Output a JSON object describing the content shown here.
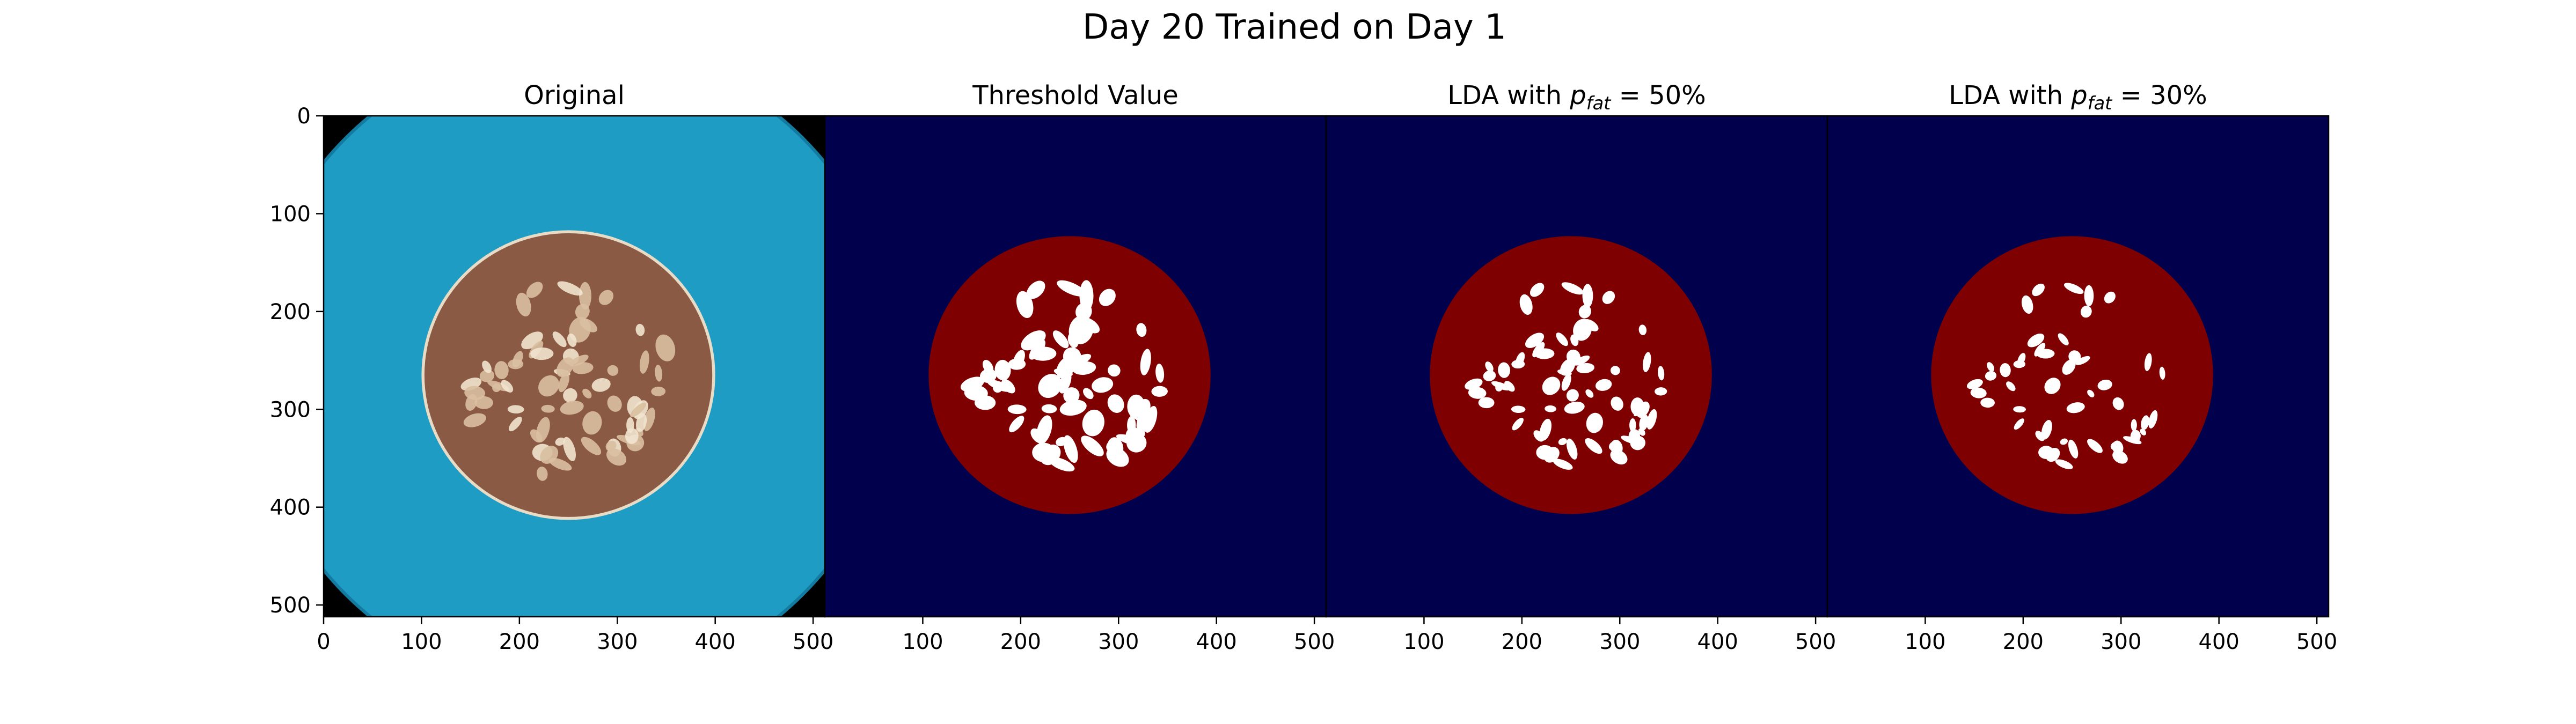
{
  "figure": {
    "title": "Day 20 Trained on Day 1"
  },
  "colors": {
    "background_blue": "#00004c",
    "sausage_red": "#7f0000",
    "fat_white": "#ffffff",
    "tray_blue": "#1f9cc4",
    "tray_edge": "#137aa0",
    "corner_black": "#000000",
    "meat_brown": "#8a5a44"
  },
  "chart_data": [
    {
      "type": "image",
      "title": "Original",
      "xlim": [
        0,
        512
      ],
      "ylim": [
        512,
        0
      ],
      "xticks": [
        0,
        100,
        200,
        300,
        400,
        500
      ],
      "yticks": [
        0,
        100,
        200,
        300,
        400,
        500
      ],
      "xtick_labels": [
        "0",
        "100",
        "200",
        "300",
        "400",
        "500"
      ],
      "ytick_labels": [
        "0",
        "100",
        "200",
        "300",
        "400",
        "500"
      ],
      "show_yaxis": true,
      "content": "photo",
      "sausage": {
        "cx": 250,
        "cy": 265,
        "rx": 147,
        "ry": 145
      }
    },
    {
      "type": "image",
      "title": "Threshold Value",
      "xlim": [
        0,
        512
      ],
      "ylim": [
        512,
        0
      ],
      "xticks": [
        100,
        200,
        300,
        400,
        500
      ],
      "xtick_labels": [
        "100",
        "200",
        "300",
        "400",
        "500"
      ],
      "show_yaxis": false,
      "content": "mask",
      "sausage": {
        "cx": 250,
        "cy": 265,
        "rx": 144,
        "ry": 142
      }
    },
    {
      "type": "image",
      "title": "LDA with p_fat = 50%",
      "title_prefix": "LDA with ",
      "title_var": "p",
      "title_sub": "fat",
      "title_suffix": " = 50%",
      "xlim": [
        0,
        512
      ],
      "ylim": [
        512,
        0
      ],
      "xticks": [
        100,
        200,
        300,
        400,
        500
      ],
      "xtick_labels": [
        "100",
        "200",
        "300",
        "400",
        "500"
      ],
      "show_yaxis": false,
      "content": "mask",
      "sausage": {
        "cx": 250,
        "cy": 265,
        "rx": 144,
        "ry": 142
      }
    },
    {
      "type": "image",
      "title": "LDA with p_fat = 30%",
      "title_prefix": "LDA with ",
      "title_var": "p",
      "title_sub": "fat",
      "title_suffix": " = 30%",
      "xlim": [
        0,
        512
      ],
      "ylim": [
        512,
        0
      ],
      "xticks": [
        100,
        200,
        300,
        400,
        500
      ],
      "xtick_labels": [
        "100",
        "200",
        "300",
        "400",
        "500"
      ],
      "show_yaxis": false,
      "content": "mask",
      "sausage": {
        "cx": 250,
        "cy": 265,
        "rx": 144,
        "ry": 142
      }
    }
  ]
}
